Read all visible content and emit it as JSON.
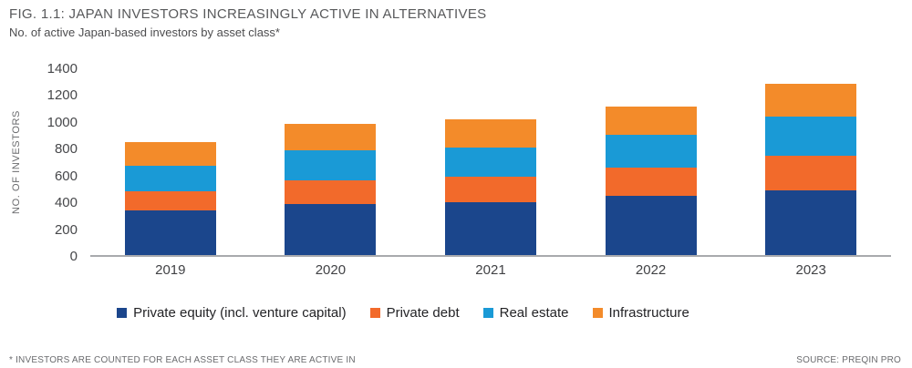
{
  "header": {
    "title": "FIG. 1.1: JAPAN INVESTORS INCREASINGLY ACTIVE IN ALTERNATIVES",
    "subtitle": "No. of active Japan-based investors by asset class*"
  },
  "chart_data": {
    "type": "bar",
    "stacked": true,
    "title": "FIG. 1.1: JAPAN INVESTORS INCREASINGLY ACTIVE IN ALTERNATIVES",
    "subtitle": "No. of active Japan-based investors by asset class*",
    "categories": [
      "2019",
      "2020",
      "2021",
      "2022",
      "2023"
    ],
    "series": [
      {
        "name": "Private equity (incl. venture capital)",
        "color": "#1B468C",
        "values": [
          330,
          380,
          395,
          445,
          480
        ]
      },
      {
        "name": "Private debt",
        "color": "#F26A2B",
        "values": [
          145,
          175,
          190,
          205,
          260
        ]
      },
      {
        "name": "Real estate",
        "color": "#1A9AD6",
        "values": [
          190,
          225,
          215,
          245,
          290
        ]
      },
      {
        "name": "Infrastructure",
        "color": "#F38B2A",
        "values": [
          175,
          200,
          210,
          215,
          250
        ]
      }
    ],
    "totals": [
      840,
      980,
      1010,
      1110,
      1280
    ],
    "xlabel": "",
    "ylabel": "NO. OF INVESTORS",
    "ylim": [
      0,
      1400
    ],
    "yticks": [
      0,
      200,
      400,
      600,
      800,
      1000,
      1200,
      1400
    ],
    "grid": false,
    "legend_position": "bottom",
    "axis_line_color": "#A8AAAD"
  },
  "footer": {
    "note": "* INVESTORS ARE COUNTED FOR EACH ASSET CLASS THEY ARE ACTIVE IN",
    "source": "SOURCE: PREQIN PRO"
  }
}
